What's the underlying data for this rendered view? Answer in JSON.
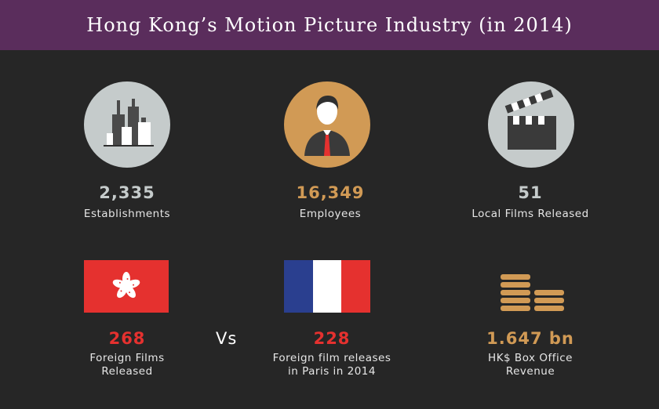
{
  "title": "Hong Kong’s Motion Picture Industry (in 2014)",
  "colors": {
    "banner": "#5a2d5c",
    "background": "#262626",
    "gray_value": "#c5cbcb",
    "gold_value": "#d19a55",
    "red_value": "#e5312f"
  },
  "stats": [
    {
      "value": "2,335",
      "label": "Establishments",
      "icon": "buildings-icon"
    },
    {
      "value": "16,349",
      "label": "Employees",
      "icon": "person-icon"
    },
    {
      "value": "51",
      "label": "Local Films Released",
      "icon": "clapperboard-icon"
    }
  ],
  "bottom": [
    {
      "value": "268",
      "label_line1": "Foreign Films",
      "label_line2": "Released",
      "icon": "hong-kong-flag-icon"
    },
    {
      "value": "228",
      "label_line1": "Foreign film releases",
      "label_line2": "in Paris in 2014",
      "icon": "france-flag-icon"
    },
    {
      "value": "1.647 bn",
      "label_line1": "HK$ Box Office",
      "label_line2": "Revenue",
      "icon": "coin-stacks-icon"
    }
  ],
  "vs_text": "Vs"
}
